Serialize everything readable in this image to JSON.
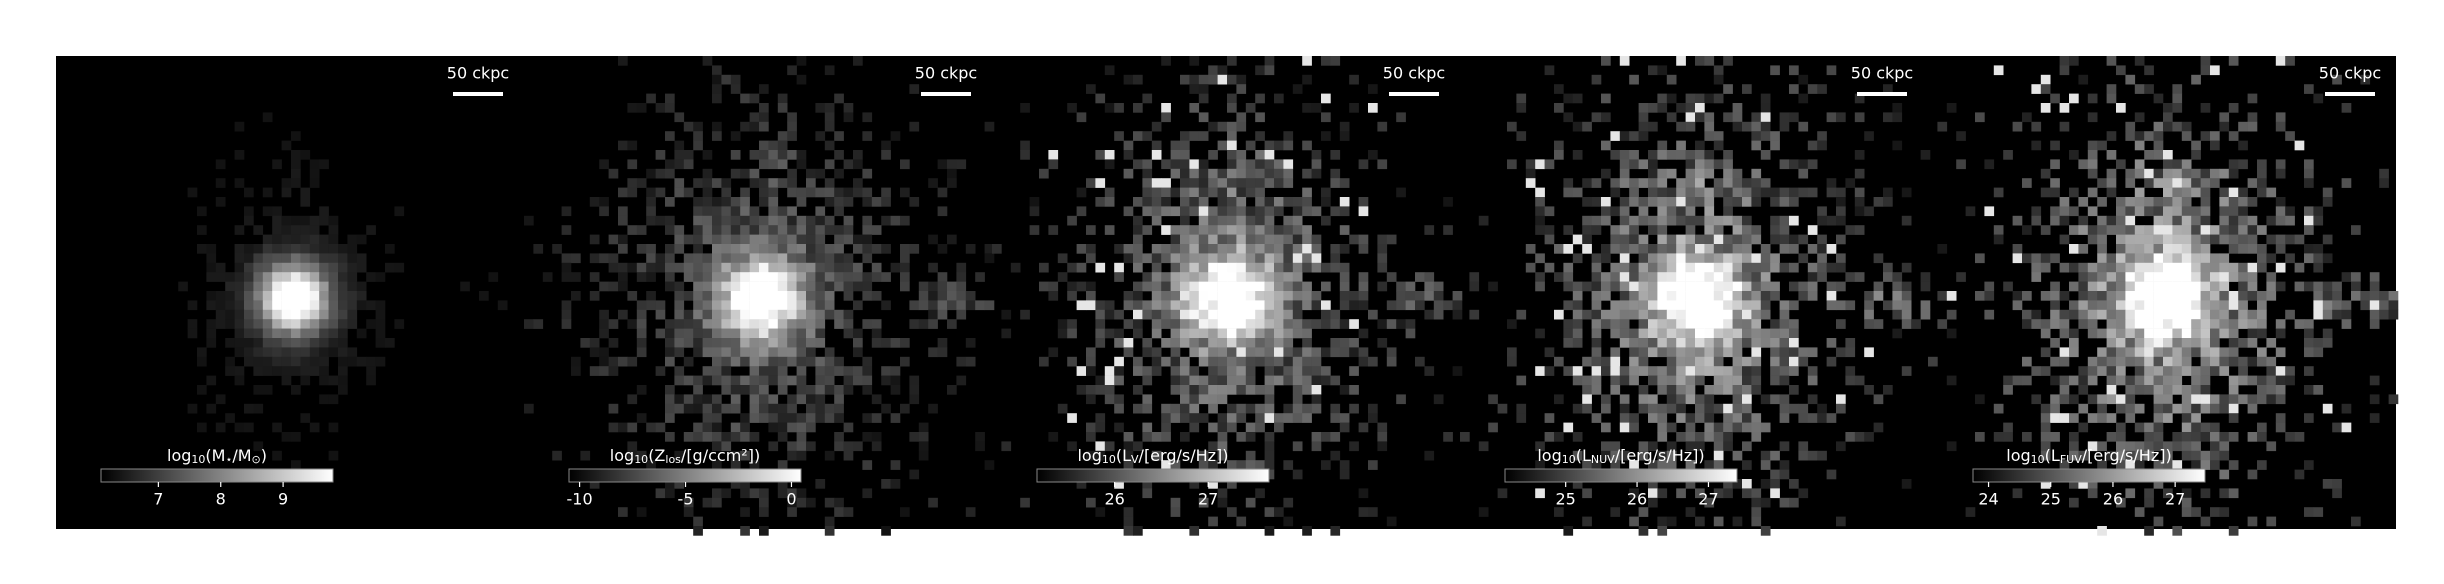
{
  "chart_data": [
    {
      "type": "image",
      "scale_bar_label": "50 ckpc",
      "colorbar": {
        "label": [
          "log",
          "10",
          "(M",
          "⋆",
          "/M",
          "⊙",
          ")"
        ],
        "lim": [
          6.08,
          9.8
        ],
        "ticks": [
          7,
          8,
          9
        ]
      }
    },
    {
      "type": "image",
      "scale_bar_label": "50 ckpc",
      "colorbar": {
        "label": [
          "log",
          "10",
          "(Z",
          "los",
          "/[g/ccm²])"
        ],
        "lim": [
          -10.5,
          0.45
        ],
        "ticks": [
          -10,
          -5,
          0
        ]
      }
    },
    {
      "type": "image",
      "scale_bar_label": "50 ckpc",
      "colorbar": {
        "label": [
          "log",
          "10",
          "(L",
          "V",
          "/[erg/s/Hz])"
        ],
        "lim": [
          25.17,
          27.65
        ],
        "ticks": [
          26,
          27
        ]
      }
    },
    {
      "type": "image",
      "scale_bar_label": "50 ckpc",
      "colorbar": {
        "label": [
          "log",
          "10",
          "(L",
          "NUV",
          "/[erg/s/Hz])"
        ],
        "lim": [
          24.15,
          27.4
        ],
        "ticks": [
          25,
          26,
          27
        ]
      }
    },
    {
      "type": "image",
      "scale_bar_label": "50 ckpc",
      "colorbar": {
        "label": [
          "log",
          "10",
          "(L",
          "FUV",
          "/[erg/s/Hz])"
        ],
        "lim": [
          23.75,
          27.48
        ],
        "ticks": [
          24,
          25,
          26,
          27
        ]
      }
    }
  ]
}
